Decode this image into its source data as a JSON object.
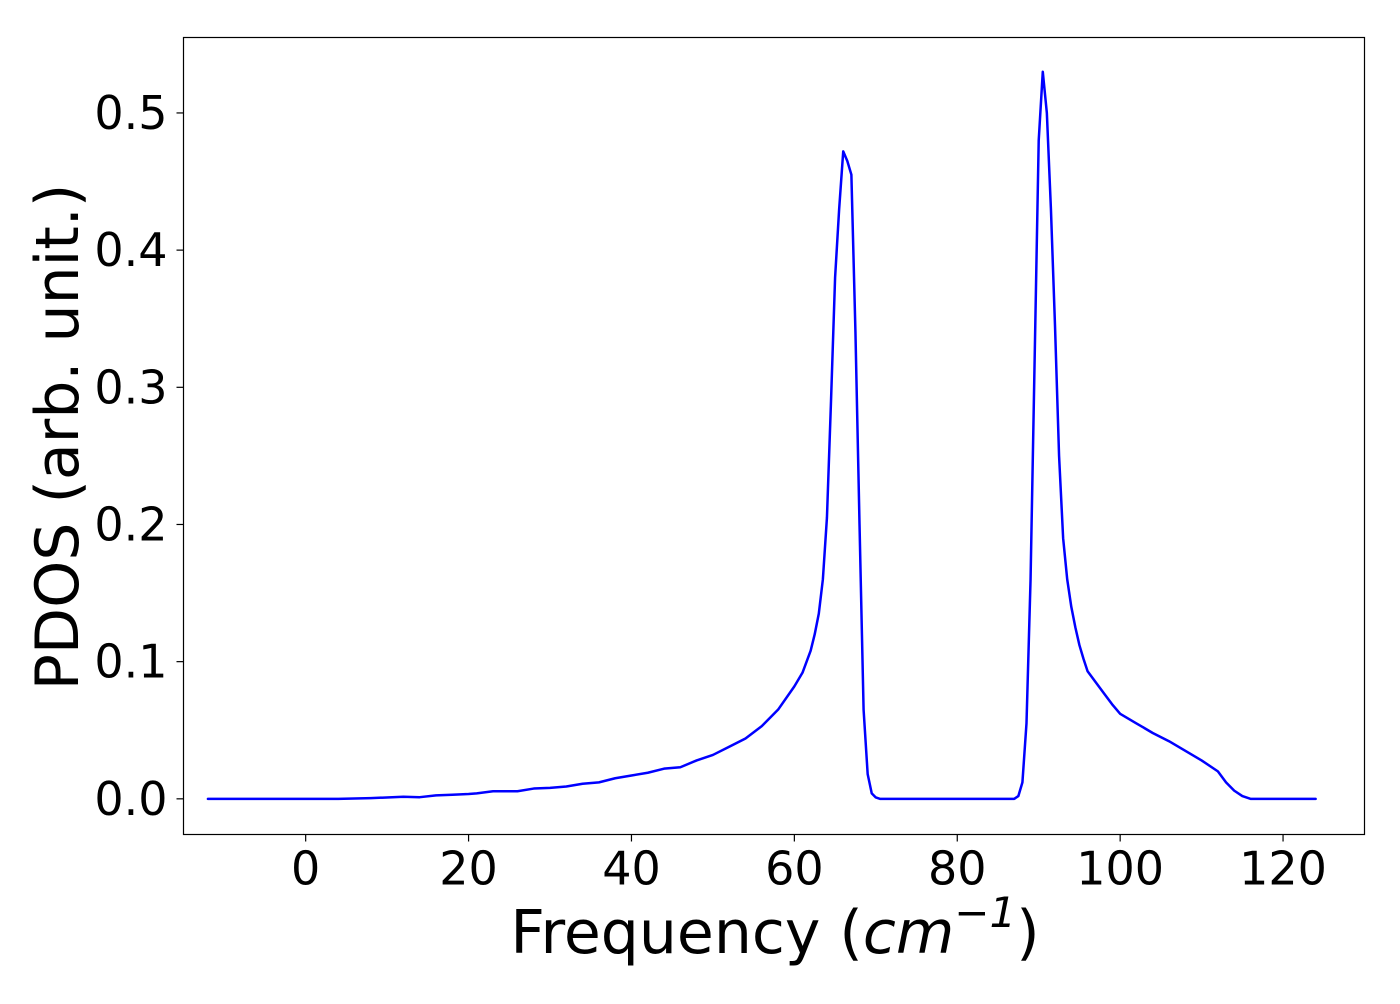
{
  "chart_data": {
    "type": "line",
    "xlabel": "Frequency (",
    "xlabel_math_base": "cm",
    "xlabel_math_sup": "−1",
    "xlabel_close": ")",
    "ylabel": "PDOS (arb. unit.)",
    "xlim": [
      -15.0,
      130.0
    ],
    "ylim": [
      -0.026,
      0.555
    ],
    "xticks": [
      0,
      20,
      40,
      60,
      80,
      100,
      120
    ],
    "xtick_labels": [
      "0",
      "20",
      "40",
      "60",
      "80",
      "100",
      "120"
    ],
    "yticks": [
      0.0,
      0.1,
      0.2,
      0.3,
      0.4,
      0.5
    ],
    "ytick_labels": [
      "0.0",
      "0.1",
      "0.2",
      "0.3",
      "0.4",
      "0.5"
    ],
    "grid": false,
    "line_color": "#0000ff",
    "series": [
      {
        "x": [
          -12.0,
          0.0,
          4.0,
          8.0,
          12.0,
          14.0,
          16.0,
          18.0,
          20.0,
          21.0,
          23.0,
          24.0,
          26.0,
          28.0,
          30.0,
          32.0,
          34.0,
          36.0,
          38.0,
          40.0,
          42.0,
          44.0,
          46.0,
          48.0,
          50.0,
          52.0,
          54.0,
          56.0,
          58.0,
          60.0,
          61.0,
          62.0,
          62.5,
          63.0,
          63.5,
          64.0,
          64.5,
          65.0,
          65.5,
          66.0,
          66.5,
          67.0,
          67.5,
          68.0,
          68.5,
          69.0,
          69.5,
          70.0,
          70.5,
          71.0,
          75.0,
          80.0,
          85.0,
          87.0,
          87.5,
          88.0,
          88.5,
          89.0,
          89.5,
          90.0,
          90.5,
          91.0,
          91.5,
          92.0,
          92.5,
          93.0,
          93.5,
          94.0,
          94.5,
          95.0,
          95.5,
          96.0,
          97.0,
          98.0,
          99.0,
          100.0,
          102.0,
          104.0,
          106.0,
          108.0,
          110.0,
          112.0,
          113.0,
          114.0,
          115.0,
          116.0,
          118.0,
          120.0,
          124.0
        ],
        "y": [
          0.0,
          0.0,
          0.0,
          0.0005,
          0.0015,
          0.0012,
          0.0025,
          0.003,
          0.0035,
          0.004,
          0.0055,
          0.0055,
          0.0055,
          0.0075,
          0.008,
          0.009,
          0.011,
          0.012,
          0.015,
          0.017,
          0.019,
          0.022,
          0.023,
          0.028,
          0.032,
          0.038,
          0.044,
          0.053,
          0.065,
          0.082,
          0.092,
          0.108,
          0.12,
          0.135,
          0.16,
          0.205,
          0.29,
          0.38,
          0.43,
          0.472,
          0.465,
          0.455,
          0.34,
          0.2,
          0.065,
          0.018,
          0.004,
          0.001,
          0.0,
          0.0,
          0.0,
          0.0,
          0.0,
          0.0,
          0.002,
          0.012,
          0.055,
          0.16,
          0.32,
          0.48,
          0.53,
          0.5,
          0.43,
          0.345,
          0.25,
          0.19,
          0.16,
          0.14,
          0.125,
          0.112,
          0.102,
          0.093,
          0.085,
          0.077,
          0.069,
          0.062,
          0.055,
          0.048,
          0.042,
          0.035,
          0.028,
          0.02,
          0.012,
          0.006,
          0.002,
          0.0,
          0.0,
          0.0,
          0.0
        ]
      }
    ]
  }
}
